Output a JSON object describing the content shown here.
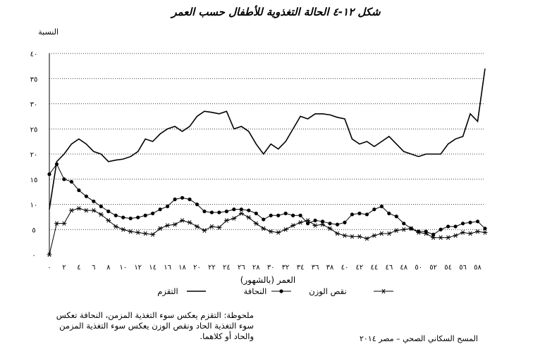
{
  "chart_data": {
    "type": "line",
    "title": "شكل ١٢-٤  الحالة التغذوية للأطفال حسب العمر",
    "ylabel": "النسبة",
    "xlabel": "العمر (بالشهور)",
    "ylim": [
      0,
      40
    ],
    "xlim": [
      0,
      59
    ],
    "yticks": [
      0,
      5,
      10,
      15,
      20,
      25,
      30,
      35,
      40
    ],
    "yticklabels": [
      "٠",
      "٥",
      "١٠",
      "١٥",
      "٢٠",
      "٢٥",
      "٣٠",
      "٣٥",
      "٤٠"
    ],
    "xticks": [
      0,
      2,
      4,
      6,
      8,
      10,
      12,
      14,
      16,
      18,
      20,
      22,
      24,
      26,
      28,
      30,
      32,
      34,
      36,
      38,
      40,
      42,
      44,
      46,
      48,
      50,
      52,
      54,
      56,
      58
    ],
    "xticklabels": [
      "٠",
      "٢",
      "٤",
      "٦",
      "٨",
      "١٠",
      "١٢",
      "١٤",
      "١٦",
      "١٨",
      "٢٠",
      "٢٢",
      "٢٤",
      "٢٦",
      "٢٨",
      "٣٠",
      "٣٢",
      "٣٤",
      "٣٦",
      "٣٨",
      "٤٠",
      "٤٢",
      "٤٤",
      "٤٦",
      "٤٨",
      "٥٠",
      "٥٢",
      "٥٤",
      "٥٦",
      "٥٨"
    ],
    "grid": "horizontal dotted",
    "legend": "bottom",
    "x": [
      0,
      1,
      2,
      3,
      4,
      5,
      6,
      7,
      8,
      9,
      10,
      11,
      12,
      13,
      14,
      15,
      16,
      17,
      18,
      19,
      20,
      21,
      22,
      23,
      24,
      25,
      26,
      27,
      28,
      29,
      30,
      31,
      32,
      33,
      34,
      35,
      36,
      37,
      38,
      39,
      40,
      41,
      42,
      43,
      44,
      45,
      46,
      47,
      48,
      49,
      50,
      51,
      52,
      53,
      54,
      55,
      56,
      57,
      58,
      59
    ],
    "series": [
      {
        "name": "التقزم",
        "marker": "none",
        "values": [
          9,
          18.5,
          20,
          22,
          23,
          22,
          20.5,
          20,
          18.5,
          18.8,
          19,
          19.5,
          20.5,
          23,
          22.5,
          24,
          25,
          25.5,
          24.5,
          25.5,
          27.5,
          28.5,
          28.3,
          28,
          28.5,
          25,
          25.5,
          24.5,
          22,
          20,
          22,
          21,
          22.5,
          25,
          27.5,
          27,
          28,
          28,
          27.8,
          27.3,
          27,
          23,
          22,
          22.5,
          21.5,
          22.5,
          23.5,
          22,
          20.5,
          20,
          19.5,
          20,
          20,
          20,
          22,
          23,
          23.5,
          28,
          26.5,
          37
        ]
      },
      {
        "name": "النحافة",
        "marker": "circle",
        "values": [
          16,
          18,
          15,
          14.5,
          12.8,
          11.6,
          10.6,
          9.6,
          8.6,
          7.8,
          7.4,
          7.2,
          7.4,
          7.8,
          8.2,
          9.0,
          9.6,
          11.0,
          11.3,
          11.0,
          10.0,
          8.6,
          8.4,
          8.4,
          8.6,
          9.0,
          9.0,
          8.8,
          8.2,
          7.0,
          7.8,
          7.8,
          8.2,
          7.8,
          7.8,
          6.2,
          6.8,
          6.6,
          6.2,
          6.0,
          6.4,
          8.0,
          8.2,
          8.0,
          9.0,
          9.6,
          8.2,
          7.6,
          6.2,
          5.2,
          4.6,
          4.6,
          4.0,
          5.0,
          5.6,
          5.6,
          6.2,
          6.4,
          6.6,
          5.2
        ]
      },
      {
        "name": "نقص الوزن",
        "marker": "asterisk",
        "values": [
          0,
          6.2,
          6.2,
          8.8,
          9.2,
          8.8,
          8.8,
          8.0,
          6.8,
          5.6,
          5.0,
          4.6,
          4.4,
          4.2,
          4.0,
          5.2,
          5.8,
          6.0,
          6.8,
          6.4,
          5.6,
          4.8,
          5.6,
          5.4,
          6.8,
          7.2,
          8.2,
          7.4,
          6.2,
          5.2,
          4.6,
          4.4,
          5.0,
          5.8,
          6.4,
          6.8,
          5.8,
          6.0,
          5.2,
          4.2,
          3.8,
          3.6,
          3.6,
          3.2,
          3.8,
          4.2,
          4.2,
          4.8,
          5.0,
          5.2,
          4.4,
          4.2,
          3.4,
          3.4,
          3.4,
          3.8,
          4.4,
          4.2,
          4.6,
          4.4
        ]
      }
    ]
  },
  "note": "ملحوظة: التقزم يعكس سوء التغذية المزمن، النحافة تعكس سوء التغذية الحاد ونقص الوزن يعكس سوء التغذية المزمن والحاد أو كلاهما.",
  "source": "المسح السكاني الصحي – مصر ٢٠١٤"
}
